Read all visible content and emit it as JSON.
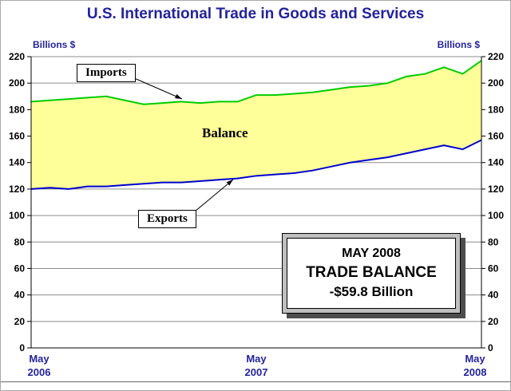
{
  "title": "U.S. International Trade in Goods and Services",
  "axis_unit_left": "Billions $",
  "axis_unit_right": "Billions $",
  "labels": {
    "imports": "Imports",
    "exports": "Exports",
    "balance": "Balance"
  },
  "annotation": {
    "line1": "MAY 2008",
    "line2": "TRADE BALANCE",
    "line3": "-$59.8 Billion"
  },
  "x_axis": [
    {
      "month": "May",
      "year": "2006"
    },
    {
      "month": "May",
      "year": "2007"
    },
    {
      "month": "May",
      "year": "2008"
    }
  ],
  "colors": {
    "title": "#24249A",
    "imports_line": "#00CC00",
    "exports_line": "#0000CC",
    "balance_fill": "#FFFF99",
    "gridline": "#8C8C8C",
    "axis": "#000000"
  },
  "chart_data": {
    "type": "area",
    "title": "U.S. International Trade in Goods and Services",
    "ylabel": "Billions $",
    "ylim": [
      0,
      220
    ],
    "yticks": [
      0,
      20,
      40,
      60,
      80,
      100,
      120,
      140,
      160,
      180,
      200,
      220
    ],
    "grid": true,
    "legend_position": "inline-callouts",
    "x": [
      "May-06",
      "Jun-06",
      "Jul-06",
      "Aug-06",
      "Sep-06",
      "Oct-06",
      "Nov-06",
      "Dec-06",
      "Jan-07",
      "Feb-07",
      "Mar-07",
      "Apr-07",
      "May-07",
      "Jun-07",
      "Jul-07",
      "Aug-07",
      "Sep-07",
      "Oct-07",
      "Nov-07",
      "Dec-07",
      "Jan-08",
      "Feb-08",
      "Mar-08",
      "Apr-08",
      "May-08"
    ],
    "series": [
      {
        "name": "Imports",
        "color": "#00CC00",
        "values": [
          186,
          187,
          188,
          189,
          190,
          187,
          184,
          185,
          186,
          185,
          186,
          186,
          191,
          191,
          192,
          193,
          195,
          197,
          198,
          200,
          205,
          207,
          212,
          207,
          217
        ]
      },
      {
        "name": "Exports",
        "color": "#0000CC",
        "values": [
          120,
          121,
          120,
          122,
          122,
          123,
          124,
          125,
          125,
          126,
          127,
          128,
          130,
          131,
          132,
          134,
          137,
          140,
          142,
          144,
          147,
          150,
          153,
          150,
          157
        ]
      }
    ],
    "fill_between": {
      "label": "Balance",
      "color": "#FFFF99"
    },
    "x_tick_labels_shown": [
      "May 2006",
      "May 2007",
      "May 2008"
    ]
  }
}
